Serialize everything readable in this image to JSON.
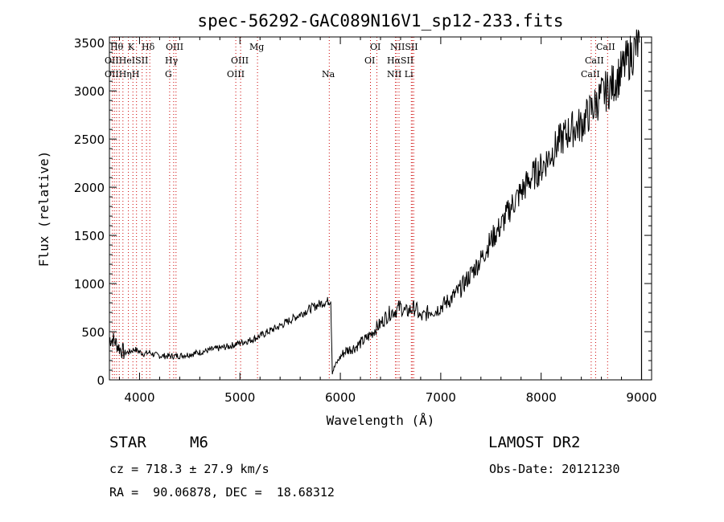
{
  "chart_data": {
    "type": "line",
    "title": "spec-56292-GAC089N16V1_sp12-233.fits",
    "xlabel": "Wavelength (Å)",
    "ylabel": "Flux (relative)",
    "xlim": [
      3700,
      9100
    ],
    "ylim": [
      0,
      3560
    ],
    "x_ticks": [
      4000,
      5000,
      6000,
      7000,
      8000,
      9000
    ],
    "y_ticks": [
      0,
      500,
      1000,
      1500,
      2000,
      2500,
      3000,
      3500
    ],
    "grid": false,
    "series": [
      {
        "x": [
          3700,
          3740,
          3800,
          3850,
          3900,
          3950,
          4000,
          4050,
          4100,
          4150,
          4200,
          4300,
          4400,
          4500,
          4600,
          4700,
          4800,
          4900,
          5000,
          5100,
          5200,
          5300,
          5400,
          5500,
          5600,
          5700,
          5800,
          5850,
          5890,
          5905,
          5920,
          5950,
          6000,
          6050,
          6100,
          6150,
          6200,
          6250,
          6300,
          6350,
          6400,
          6450,
          6500,
          6550,
          6600,
          6650,
          6700,
          6750,
          6800,
          6850,
          6900,
          6950,
          7000,
          7100,
          7200,
          7300,
          7400,
          7500,
          7600,
          7700,
          7800,
          7900,
          8000,
          8100,
          8200,
          8300,
          8400,
          8500,
          8600,
          8700,
          8800,
          8850,
          8900,
          8950,
          8980
        ],
        "y": [
          420,
          420,
          330,
          280,
          290,
          320,
          290,
          270,
          285,
          260,
          250,
          245,
          250,
          265,
          285,
          310,
          330,
          350,
          385,
          410,
          455,
          510,
          560,
          620,
          680,
          740,
          790,
          810,
          820,
          830,
          80,
          150,
          240,
          300,
          320,
          340,
          380,
          420,
          470,
          530,
          580,
          650,
          700,
          720,
          760,
          700,
          730,
          750,
          640,
          680,
          720,
          720,
          760,
          840,
          950,
          1100,
          1250,
          1450,
          1600,
          1800,
          1950,
          2100,
          2200,
          2350,
          2500,
          2600,
          2650,
          2800,
          2950,
          3050,
          3200,
          3300,
          3380,
          3450,
          3500
        ]
      }
    ],
    "line_labels": [
      {
        "text": "Hθ"
      },
      {
        "text": "K"
      },
      {
        "text": "Hδ"
      },
      {
        "text": "OIII"
      },
      {
        "text": "Mg"
      },
      {
        "text": "OI"
      },
      {
        "text": "NIISII"
      },
      {
        "text": "CaII"
      },
      {
        "text": "OIIHeISII"
      },
      {
        "text": "Hγ"
      },
      {
        "text": "OIII"
      },
      {
        "text": "OI"
      },
      {
        "text": "HαSII"
      },
      {
        "text": "CaII"
      },
      {
        "text": "OIIHηH"
      },
      {
        "text": "G"
      },
      {
        "text": "OIII"
      },
      {
        "text": "Na"
      },
      {
        "text": "NII Li"
      },
      {
        "text": "CaII"
      }
    ]
  },
  "info": {
    "object_class": "STAR",
    "object_type": "M6",
    "survey": "LAMOST DR2",
    "cz": "cz = 718.3 ± 27.9 km/s",
    "obs_date": "Obs-Date: 20121230",
    "coords": "RA =  90.06878, DEC =  18.68312"
  },
  "colors": {
    "line_markers": "#cc0000",
    "spectrum": "#000000",
    "axes": "#000000"
  }
}
